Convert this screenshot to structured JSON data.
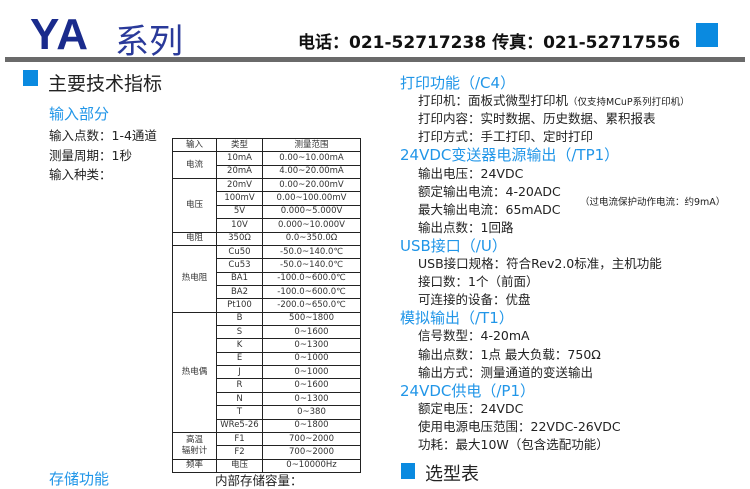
{
  "header": {
    "brand": "YA",
    "series": "系列",
    "contact": "电话：021-52717238  传真：021-52717556",
    "accent_color": "#0a8ae0",
    "title_color": "#1a2b8c"
  },
  "main_heading": "主要技术指标",
  "input": {
    "heading": "输入部分",
    "points": "输入点数：1-4通道",
    "period": "测量周期：1秒",
    "types": "输入种类："
  },
  "table": {
    "headers": [
      "输入",
      "类型",
      "测量范围"
    ],
    "groups": [
      {
        "name": "电流",
        "rows": [
          [
            "10mA",
            "0.00~10.00mA"
          ],
          [
            "20mA",
            "4.00~20.00mA"
          ]
        ]
      },
      {
        "name": "电压",
        "rows": [
          [
            "20mV",
            "0.00~20.00mV"
          ],
          [
            "100mV",
            "0.00~100.00mV"
          ],
          [
            "5V",
            "0.000~5.000V"
          ],
          [
            "10V",
            "0.000~10.000V"
          ]
        ]
      },
      {
        "name": "电阻",
        "rows": [
          [
            "350Ω",
            "0.0~350.0Ω"
          ]
        ]
      },
      {
        "name": "热电阻",
        "rows": [
          [
            "Cu50",
            "-50.0~140.0℃"
          ],
          [
            "Cu53",
            "-50.0~140.0℃"
          ],
          [
            "BA1",
            "-100.0~600.0℃"
          ],
          [
            "BA2",
            "-100.0~600.0℃"
          ],
          [
            "Pt100",
            "-200.0~650.0℃"
          ]
        ]
      },
      {
        "name": "热电偶",
        "rows": [
          [
            "B",
            "500~1800"
          ],
          [
            "S",
            "0~1600"
          ],
          [
            "K",
            "0~1300"
          ],
          [
            "E",
            "0~1000"
          ],
          [
            "J",
            "0~1000"
          ],
          [
            "R",
            "0~1600"
          ],
          [
            "N",
            "0~1300"
          ],
          [
            "T",
            "0~380"
          ],
          [
            "WRe5-26",
            "0~1800"
          ]
        ]
      },
      {
        "name": "高温\n辐射计",
        "rows": [
          [
            "F1",
            "700~2000"
          ],
          [
            "F2",
            "700~2000"
          ]
        ]
      },
      {
        "name": "频率",
        "rows": [
          [
            "电压",
            "0~10000Hz"
          ]
        ]
      }
    ]
  },
  "storage": {
    "heading": "存储功能",
    "capacity": "内部存储容量："
  },
  "right": [
    {
      "type": "h",
      "text": "打印功能（/C4）"
    },
    {
      "type": "t",
      "text": "打印机：面板式微型打印机",
      "note": "（仅支持MCuP系列打印机）"
    },
    {
      "type": "t",
      "text": "打印内容：实时数据、历史数据、累积报表"
    },
    {
      "type": "t",
      "text": "打印方式：手工打印、定时打印"
    },
    {
      "type": "h",
      "text": "24VDC变送器电源输出（/TP1）"
    },
    {
      "type": "t",
      "text": "输出电压：24VDC"
    },
    {
      "type": "t",
      "text": "额定输出电流：4-20ADC"
    },
    {
      "type": "t",
      "text": "最大输出电流：65mADC"
    },
    {
      "type": "t",
      "text": "输出点数：1回路"
    },
    {
      "type": "h",
      "text": "USB接口（/U）"
    },
    {
      "type": "t",
      "text": "USB接口规格：符合Rev2.0标准，主机功能"
    },
    {
      "type": "t",
      "text": "接口数：1个（前面）"
    },
    {
      "type": "t",
      "text": "可连接的设备：优盘"
    },
    {
      "type": "h",
      "text": "模拟输出（/T1）"
    },
    {
      "type": "t",
      "text": "信号数型：4-20mA"
    },
    {
      "type": "t",
      "text": "输出点数：1点  最大负载：750Ω"
    },
    {
      "type": "t",
      "text": "输出方式：测量通道的变送输出"
    },
    {
      "type": "h",
      "text": "24VDC供电（/P1）"
    },
    {
      "type": "t",
      "text": "额定电压：24VDC"
    },
    {
      "type": "t",
      "text": "使用电源电压范围：22VDC-26VDC"
    },
    {
      "type": "t",
      "text": "功耗：最大10W（包含选配功能）"
    }
  ],
  "overcurrent_note": "（过电流保护动作电流：约9mA）",
  "selection_heading": "选型表"
}
